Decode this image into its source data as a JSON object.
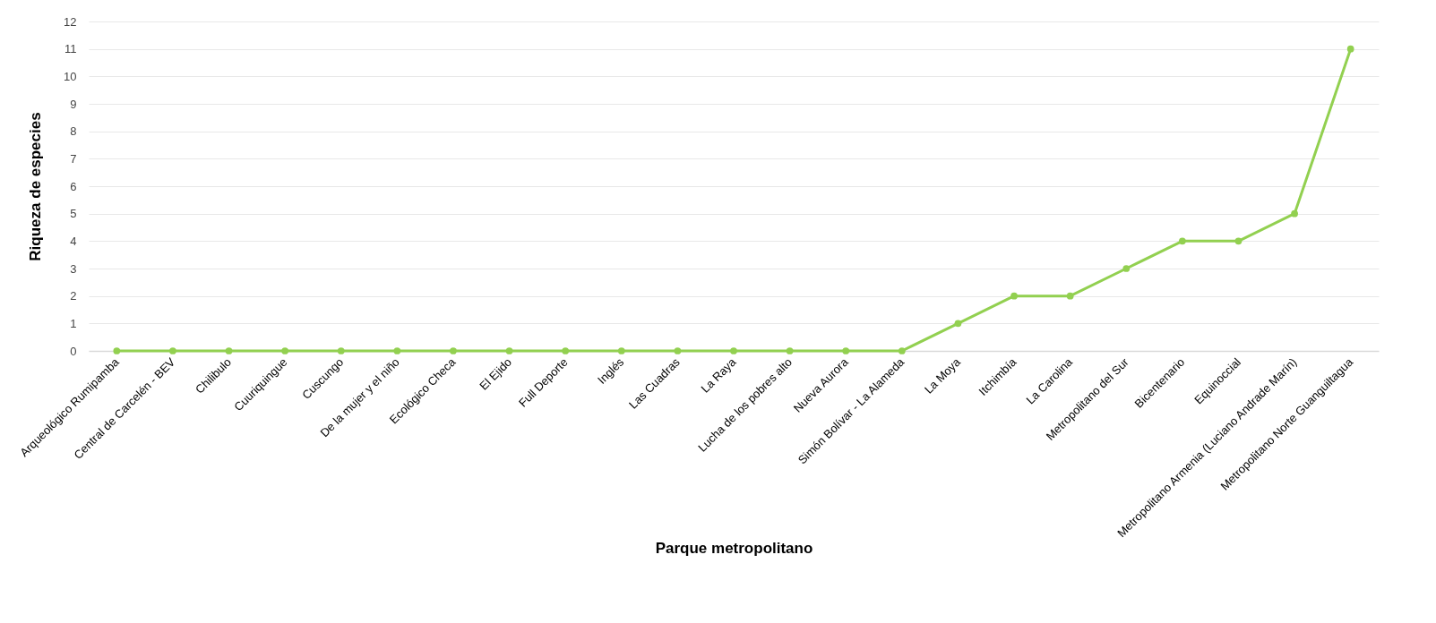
{
  "chart_data": {
    "type": "line",
    "xlabel": "Parque metropolitano",
    "ylabel": "Riqueza de especies",
    "categories": [
      "Arqueológico Rumipamba",
      "Central de Carcelén - BEV",
      "Chilibulo",
      "Cuuriquingue",
      "Cuscungo",
      "De la mujer y el niño",
      "Ecológico Checa",
      "El Ejido",
      "Full Deporte",
      "Inglés",
      "Las Cuadras",
      "La Raya",
      "Lucha de los pobres alto",
      "Nueva Aurora",
      "Simón Bolívar - La Alameda",
      "La Moya",
      "Itchimbía",
      "La Carolina",
      "Metropolitano del Sur",
      "Bicentenario",
      "Equinoccial",
      "Metropolitano Armenia (Luciano Andrade Marín)",
      "Metropolitano Norte Guanguiltagua"
    ],
    "series": [
      {
        "color": "#92d050",
        "values": [
          0,
          0,
          0,
          0,
          0,
          0,
          0,
          0,
          0,
          0,
          0,
          0,
          0,
          0,
          0,
          1,
          2,
          2,
          3,
          4,
          4,
          5,
          11
        ]
      }
    ],
    "ylim": [
      0,
      12
    ],
    "yticks": [
      0,
      1,
      2,
      3,
      4,
      5,
      6,
      7,
      8,
      9,
      10,
      11,
      12
    ],
    "grid": "y",
    "marker": "circle",
    "legend": false
  }
}
